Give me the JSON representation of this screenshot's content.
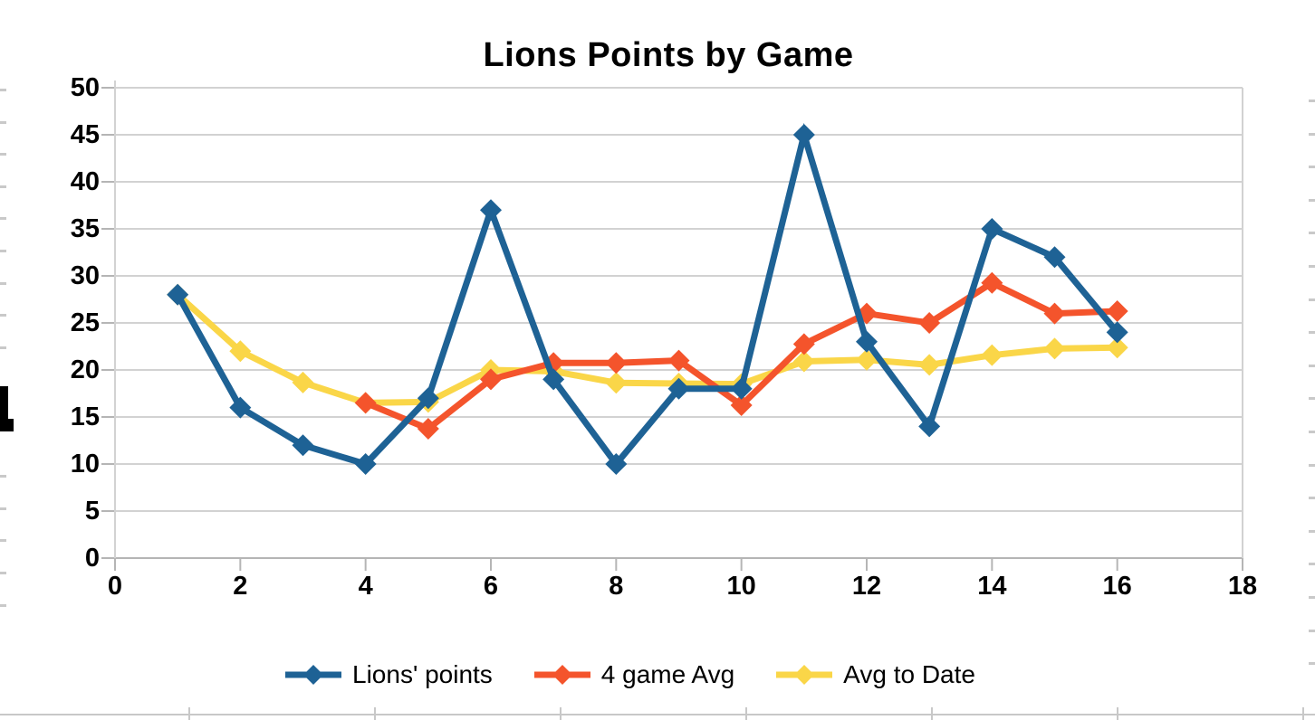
{
  "chart_data": {
    "type": "line",
    "title": "Lions Points by Game",
    "xlabel": "",
    "ylabel": "",
    "xlim": [
      0,
      18
    ],
    "ylim": [
      0,
      50
    ],
    "x_ticks": [
      0,
      2,
      4,
      6,
      8,
      10,
      12,
      14,
      16,
      18
    ],
    "y_ticks": [
      0,
      5,
      10,
      15,
      20,
      25,
      30,
      35,
      40,
      45,
      50
    ],
    "grid": "horizontal",
    "legend_position": "bottom",
    "series": [
      {
        "name": "Lions' points",
        "color": "#1e6295",
        "x": [
          1,
          2,
          3,
          4,
          5,
          6,
          7,
          8,
          9,
          10,
          11,
          12,
          13,
          14,
          15,
          16
        ],
        "values": [
          28,
          16,
          12,
          10,
          17,
          37,
          19,
          10,
          18,
          18,
          45,
          23,
          14,
          35,
          32,
          24
        ]
      },
      {
        "name": "4 game Avg",
        "color": "#f4542c",
        "x": [
          4,
          5,
          6,
          7,
          8,
          9,
          10,
          11,
          12,
          13,
          14,
          15,
          16
        ],
        "values": [
          16.5,
          13.75,
          19,
          20.75,
          20.75,
          21,
          16.25,
          22.75,
          26,
          25,
          29.25,
          26,
          26.25
        ]
      },
      {
        "name": "Avg to Date",
        "color": "#fad648",
        "x": [
          1,
          2,
          3,
          4,
          5,
          6,
          7,
          8,
          9,
          10,
          11,
          12,
          13,
          14,
          15,
          16
        ],
        "values": [
          28,
          22,
          18.67,
          16.5,
          16.6,
          20,
          19.86,
          18.63,
          18.56,
          18.5,
          20.91,
          21.08,
          20.54,
          21.57,
          22.27,
          22.38
        ]
      }
    ]
  },
  "colors": {
    "gridline": "#d2d2d2",
    "axis_line": "#b5b5b5",
    "tick": "#b5b5b5",
    "label_text": "#000000"
  }
}
